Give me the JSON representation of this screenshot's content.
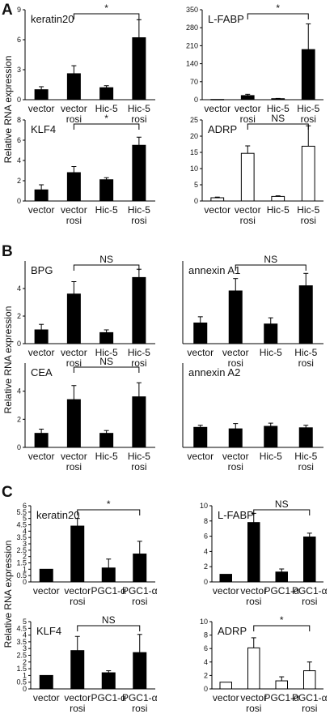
{
  "panels": [
    {
      "letter": "A",
      "ylabel": "Relative RNA expression"
    },
    {
      "letter": "B",
      "ylabel": "Relative RNA expression"
    },
    {
      "letter": "C",
      "ylabel": "Relative RNA expression"
    }
  ],
  "chart_data": [
    {
      "type": "bar",
      "title": "keratin20",
      "categories": [
        [
          "vector"
        ],
        [
          "vector",
          "rosi"
        ],
        [
          "Hic-5"
        ],
        [
          "Hic-5",
          "rosi"
        ]
      ],
      "values": [
        1.0,
        2.6,
        1.2,
        6.2
      ],
      "errors": [
        0.3,
        0.8,
        0.2,
        1.8
      ],
      "fill": [
        "#000000",
        "#000000",
        "#000000",
        "#000000"
      ],
      "ylim": [
        0,
        9
      ],
      "yticks": [
        0,
        3,
        6,
        9
      ],
      "sig": {
        "from": 1,
        "to": 3,
        "label": "*"
      }
    },
    {
      "type": "bar",
      "title": "L-FABP",
      "categories": [
        [
          "vector"
        ],
        [
          "vector",
          "rosi"
        ],
        [
          "Hic-5"
        ],
        [
          "Hic-5",
          "rosi"
        ]
      ],
      "values": [
        1,
        16,
        4,
        195
      ],
      "errors": [
        0,
        5,
        1,
        100
      ],
      "fill": [
        "#000000",
        "#000000",
        "#000000",
        "#000000"
      ],
      "ylim": [
        0,
        350
      ],
      "yticks": [
        0,
        70,
        140,
        210,
        280,
        350
      ],
      "sig": {
        "from": 1,
        "to": 3,
        "label": "*"
      }
    },
    {
      "type": "bar",
      "title": "KLF4",
      "categories": [
        [
          "vector"
        ],
        [
          "vector",
          "rosi"
        ],
        [
          "Hic-5"
        ],
        [
          "Hic-5",
          "rosi"
        ]
      ],
      "values": [
        1.1,
        2.8,
        2.1,
        5.5
      ],
      "errors": [
        0.5,
        0.6,
        0.2,
        0.8
      ],
      "fill": [
        "#000000",
        "#000000",
        "#000000",
        "#000000"
      ],
      "ylim": [
        0,
        8
      ],
      "yticks": [
        0,
        2,
        4,
        6,
        8
      ],
      "sig": {
        "from": 1,
        "to": 3,
        "label": "*"
      }
    },
    {
      "type": "bar",
      "title": "ADRP",
      "categories": [
        [
          "vector"
        ],
        [
          "vector",
          "rosi"
        ],
        [
          "Hic-5"
        ],
        [
          "Hic-5",
          "rosi"
        ]
      ],
      "values": [
        1.0,
        14.7,
        1.4,
        16.9
      ],
      "errors": [
        0.2,
        2.3,
        0.2,
        6.3
      ],
      "fill": [
        "#ffffff",
        "#ffffff",
        "#ffffff",
        "#ffffff"
      ],
      "ylim": [
        0,
        25
      ],
      "yticks": [
        0,
        5,
        10,
        15,
        20,
        25
      ],
      "sig": {
        "from": 1,
        "to": 3,
        "label": "NS"
      }
    },
    {
      "type": "bar",
      "title": "BPG",
      "categories": [
        [
          "vector"
        ],
        [
          "vector",
          "rosi"
        ],
        [
          "Hic-5"
        ],
        [
          "Hic-5",
          "rosi"
        ]
      ],
      "values": [
        1.0,
        3.6,
        0.8,
        4.8
      ],
      "errors": [
        0.4,
        0.9,
        0.2,
        0.6
      ],
      "fill": [
        "#000000",
        "#000000",
        "#000000",
        "#000000"
      ],
      "ylim": [
        0,
        6
      ],
      "yticks": [
        0,
        2,
        4
      ],
      "sig": {
        "from": 1,
        "to": 3,
        "label": "NS"
      }
    },
    {
      "type": "bar",
      "title": "annexin A1",
      "categories": [
        [
          "vector"
        ],
        [
          "vector",
          "rosi"
        ],
        [
          "Hic-5"
        ],
        [
          "Hic-5",
          "rosi"
        ]
      ],
      "values": [
        1.0,
        2.55,
        0.95,
        2.8
      ],
      "errors": [
        0.3,
        0.6,
        0.3,
        0.6
      ],
      "fill": [
        "#000000",
        "#000000",
        "#000000",
        "#000000"
      ],
      "ylim": [
        0,
        4
      ],
      "yticks": [],
      "sig": {
        "from": 1,
        "to": 3,
        "label": "NS"
      }
    },
    {
      "type": "bar",
      "title": "CEA",
      "categories": [
        [
          "vector"
        ],
        [
          "vector",
          "rosi"
        ],
        [
          "Hic-5"
        ],
        [
          "Hic-5",
          "rosi"
        ]
      ],
      "values": [
        1.0,
        3.4,
        1.0,
        3.6
      ],
      "errors": [
        0.3,
        1.0,
        0.2,
        1.0
      ],
      "fill": [
        "#000000",
        "#000000",
        "#000000",
        "#000000"
      ],
      "ylim": [
        0,
        6
      ],
      "yticks": [
        0,
        2,
        4
      ],
      "sig": {
        "from": 1,
        "to": 3,
        "label": "NS"
      }
    },
    {
      "type": "bar",
      "title": "annexin A2",
      "categories": [
        [
          "vector"
        ],
        [
          "vector",
          "rosi"
        ],
        [
          "Hic-5"
        ],
        [
          "Hic-5",
          "rosi"
        ]
      ],
      "values": [
        0.95,
        0.88,
        1.0,
        0.93
      ],
      "errors": [
        0.1,
        0.25,
        0.15,
        0.12
      ],
      "fill": [
        "#000000",
        "#000000",
        "#000000",
        "#000000"
      ],
      "ylim": [
        0,
        4
      ],
      "yticks": [],
      "sig": null
    },
    {
      "type": "bar",
      "title": "keratin20",
      "categories": [
        [
          "vector"
        ],
        [
          "vector",
          "rosi"
        ],
        [
          "PGC1-α"
        ],
        [
          "PGC1-α",
          "rosi"
        ]
      ],
      "values": [
        1.0,
        4.4,
        1.1,
        2.2
      ],
      "errors": [
        0,
        0.6,
        0.7,
        1.0
      ],
      "fill": [
        "#000000",
        "#000000",
        "#000000",
        "#000000"
      ],
      "ylim": [
        0,
        6
      ],
      "yticks": [
        0,
        0.5,
        1,
        1.5,
        2,
        2.5,
        3,
        3.5,
        4,
        4.5,
        5,
        5.5,
        6
      ],
      "sig": {
        "from": 1,
        "to": 3,
        "label": "*"
      }
    },
    {
      "type": "bar",
      "title": "L-FABP",
      "categories": [
        [
          "vector"
        ],
        [
          "vector",
          "rosi"
        ],
        [
          "PGC1-α"
        ],
        [
          "PGC1-α",
          "rosi"
        ]
      ],
      "values": [
        1.0,
        7.8,
        1.3,
        5.9
      ],
      "errors": [
        0,
        1.2,
        0.4,
        0.5
      ],
      "fill": [
        "#000000",
        "#000000",
        "#000000",
        "#000000"
      ],
      "ylim": [
        0,
        10
      ],
      "yticks": [
        0,
        2,
        4,
        6,
        8,
        10
      ],
      "sig": {
        "from": 1,
        "to": 3,
        "label": "NS"
      }
    },
    {
      "type": "bar",
      "title": "KLF4",
      "categories": [
        [
          "vector"
        ],
        [
          "vector",
          "rosi"
        ],
        [
          "PGC1-α"
        ],
        [
          "PGC1-α",
          "rosi"
        ]
      ],
      "values": [
        1.0,
        2.85,
        1.2,
        2.7
      ],
      "errors": [
        0,
        1.05,
        0.15,
        1.35
      ],
      "fill": [
        "#000000",
        "#000000",
        "#000000",
        "#000000"
      ],
      "ylim": [
        0,
        5
      ],
      "yticks": [
        0,
        0.5,
        1,
        1.5,
        2,
        2.5,
        3,
        3.5,
        4,
        4.5,
        5
      ],
      "sig": {
        "from": 1,
        "to": 3,
        "label": "NS"
      }
    },
    {
      "type": "bar",
      "title": "ADRP",
      "categories": [
        [
          "vector"
        ],
        [
          "vector",
          "rosi"
        ],
        [
          "PGC1-α"
        ],
        [
          "PGC1-α",
          "rosi"
        ]
      ],
      "values": [
        1.0,
        6.1,
        1.2,
        2.7
      ],
      "errors": [
        0,
        1.5,
        0.6,
        1.3
      ],
      "fill": [
        "#ffffff",
        "#ffffff",
        "#ffffff",
        "#ffffff"
      ],
      "ylim": [
        0,
        10
      ],
      "yticks": [
        0,
        2,
        4,
        6,
        8,
        10
      ],
      "sig": {
        "from": 1,
        "to": 3,
        "label": "*"
      }
    }
  ]
}
